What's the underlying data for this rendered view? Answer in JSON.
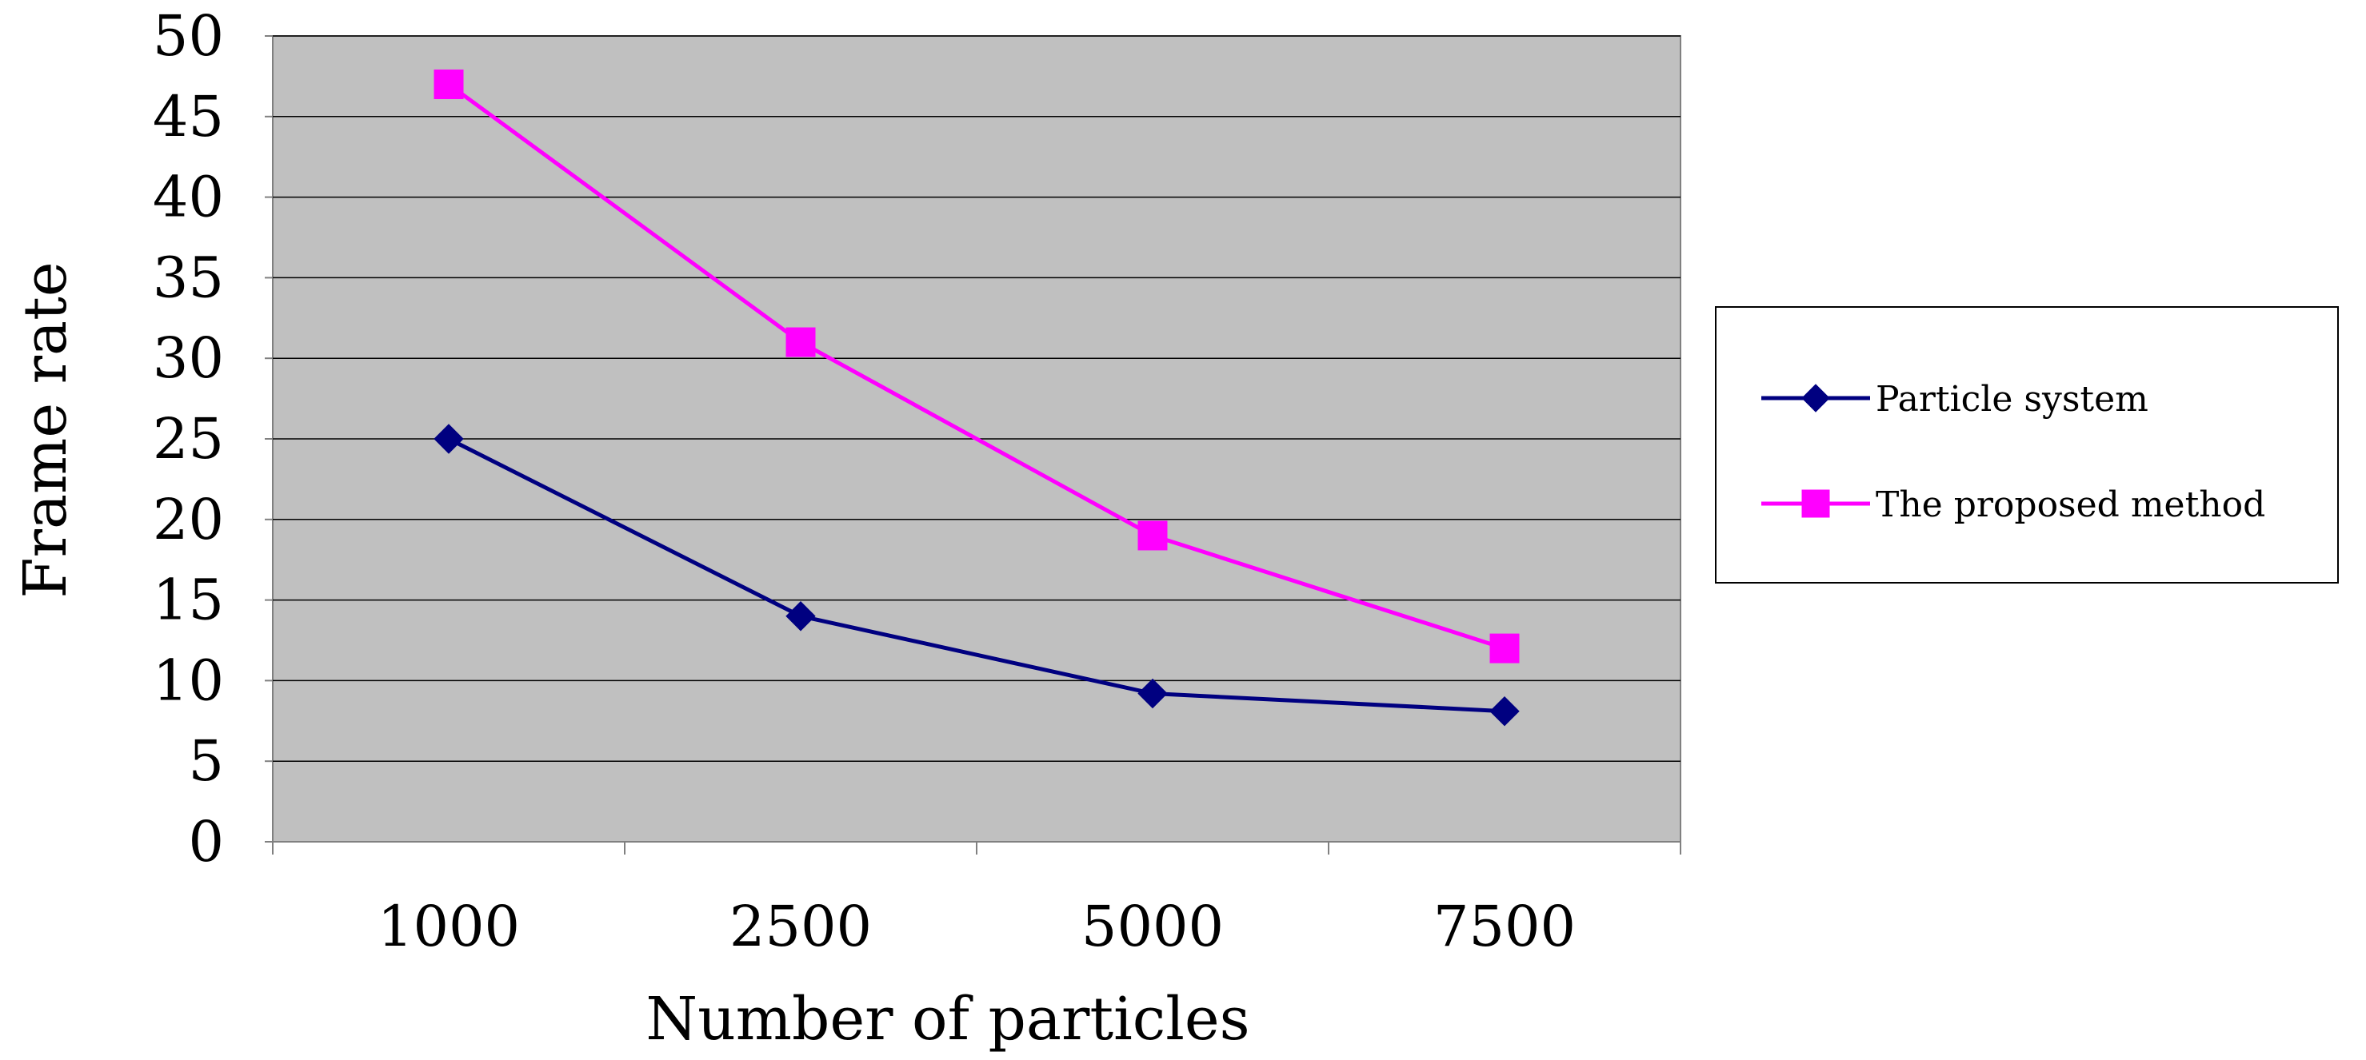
{
  "chart_data": {
    "type": "line",
    "title": "",
    "xlabel": "Number of particles",
    "ylabel": "Frame rate",
    "categories": [
      "1000",
      "2500",
      "5000",
      "7500"
    ],
    "ylim": [
      0,
      50
    ],
    "yticks": [
      0,
      5,
      10,
      15,
      20,
      25,
      30,
      35,
      40,
      45,
      50
    ],
    "grid": true,
    "legend_position": "right",
    "series": [
      {
        "name": "Particle system",
        "values": [
          25,
          14,
          9.2,
          8.1
        ],
        "color": "#000080",
        "marker": "diamond"
      },
      {
        "name": "The proposed method",
        "values": [
          47,
          31,
          19,
          12
        ],
        "color": "#FF00FF",
        "marker": "square"
      }
    ],
    "plot_background": "#C0C0C0"
  }
}
